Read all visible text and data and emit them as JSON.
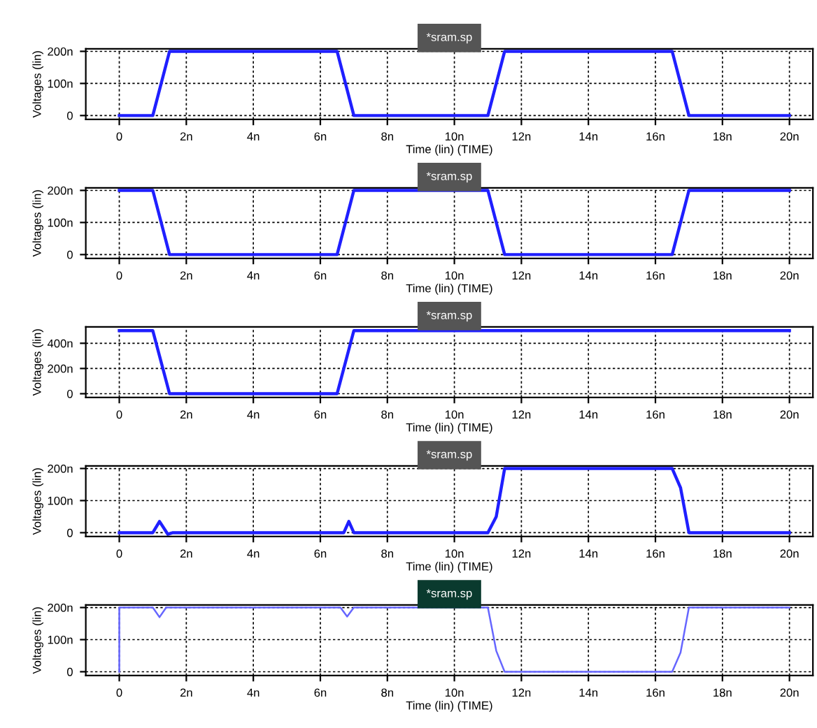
{
  "chart_data": [
    {
      "type": "line",
      "title": "*sram.sp",
      "xlabel": "Time (lin) (TIME)",
      "ylabel": "Voltages (lin)",
      "xlim": [
        -1,
        20.7
      ],
      "ylim": [
        -12,
        208
      ],
      "xticks": [
        0,
        {
          "value": 2,
          "label": "2n"
        },
        {
          "value": 4,
          "label": "4n"
        },
        {
          "value": 6,
          "label": "6n"
        },
        {
          "value": 8,
          "label": "8n"
        },
        {
          "value": 10,
          "label": "10n"
        },
        {
          "value": 12,
          "label": "12n"
        },
        {
          "value": 14,
          "label": "14n"
        },
        {
          "value": 16,
          "label": "16n"
        },
        {
          "value": 18,
          "label": "18n"
        },
        {
          "value": 20,
          "label": "20n"
        }
      ],
      "yticks": [
        0,
        {
          "value": 100,
          "label": "100n"
        },
        {
          "value": 200,
          "label": "200n"
        }
      ],
      "grid": true,
      "legend": false,
      "series": [
        {
          "color": "#1f1fff",
          "x": [
            0,
            1,
            1.5,
            6.5,
            7,
            11,
            11.5,
            16.5,
            17,
            20
          ],
          "values": [
            0,
            0,
            200,
            200,
            0,
            0,
            200,
            200,
            0,
            0
          ]
        }
      ]
    },
    {
      "type": "line",
      "title": "*sram.sp",
      "xlabel": "Time (lin) (TIME)",
      "ylabel": "Voltages (lin)",
      "xlim": [
        -1,
        20.7
      ],
      "ylim": [
        -12,
        208
      ],
      "xticks": [
        0,
        {
          "value": 2,
          "label": "2n"
        },
        {
          "value": 4,
          "label": "4n"
        },
        {
          "value": 6,
          "label": "6n"
        },
        {
          "value": 8,
          "label": "8n"
        },
        {
          "value": 10,
          "label": "10n"
        },
        {
          "value": 12,
          "label": "12n"
        },
        {
          "value": 14,
          "label": "14n"
        },
        {
          "value": 16,
          "label": "16n"
        },
        {
          "value": 18,
          "label": "18n"
        },
        {
          "value": 20,
          "label": "20n"
        }
      ],
      "yticks": [
        0,
        {
          "value": 100,
          "label": "100n"
        },
        {
          "value": 200,
          "label": "200n"
        }
      ],
      "grid": true,
      "legend": false,
      "series": [
        {
          "color": "#1f1fff",
          "x": [
            0,
            1,
            1.5,
            6.5,
            7,
            11,
            11.5,
            16.5,
            17,
            20
          ],
          "values": [
            200,
            200,
            0,
            0,
            200,
            200,
            0,
            0,
            200,
            200
          ]
        }
      ]
    },
    {
      "type": "line",
      "title": "*sram.sp",
      "xlabel": "Time (lin) (TIME)",
      "ylabel": "Voltages (lin)",
      "xlim": [
        -1,
        20.7
      ],
      "ylim": [
        -30,
        530
      ],
      "xticks": [
        0,
        {
          "value": 2,
          "label": "2n"
        },
        {
          "value": 4,
          "label": "4n"
        },
        {
          "value": 6,
          "label": "6n"
        },
        {
          "value": 8,
          "label": "8n"
        },
        {
          "value": 10,
          "label": "10n"
        },
        {
          "value": 12,
          "label": "12n"
        },
        {
          "value": 14,
          "label": "14n"
        },
        {
          "value": 16,
          "label": "16n"
        },
        {
          "value": 18,
          "label": "18n"
        },
        {
          "value": 20,
          "label": "20n"
        }
      ],
      "yticks": [
        0,
        {
          "value": 200,
          "label": "200n"
        },
        {
          "value": 400,
          "label": "400n"
        }
      ],
      "grid": true,
      "legend": false,
      "series": [
        {
          "color": "#1f1fff",
          "x": [
            0,
            1,
            1.5,
            6.5,
            7,
            20
          ],
          "values": [
            500,
            500,
            0,
            0,
            500,
            500
          ]
        }
      ]
    },
    {
      "type": "line",
      "title": "*sram.sp",
      "xlabel": "Time (lin) (TIME)",
      "ylabel": "Voltages (lin)",
      "xlim": [
        -1,
        20.7
      ],
      "ylim": [
        -12,
        208
      ],
      "xticks": [
        0,
        {
          "value": 2,
          "label": "2n"
        },
        {
          "value": 4,
          "label": "4n"
        },
        {
          "value": 6,
          "label": "6n"
        },
        {
          "value": 8,
          "label": "8n"
        },
        {
          "value": 10,
          "label": "10n"
        },
        {
          "value": 12,
          "label": "12n"
        },
        {
          "value": 14,
          "label": "14n"
        },
        {
          "value": 16,
          "label": "16n"
        },
        {
          "value": 18,
          "label": "18n"
        },
        {
          "value": 20,
          "label": "20n"
        }
      ],
      "yticks": [
        0,
        {
          "value": 100,
          "label": "100n"
        },
        {
          "value": 200,
          "label": "200n"
        }
      ],
      "grid": true,
      "legend": false,
      "series": [
        {
          "color": "#1f1fff",
          "x": [
            0,
            1,
            1.2,
            1.45,
            1.6,
            6.7,
            6.85,
            7,
            11,
            11.25,
            11.5,
            16.5,
            16.75,
            17,
            20
          ],
          "values": [
            0,
            0,
            35,
            -5,
            0,
            0,
            35,
            0,
            0,
            50,
            200,
            200,
            140,
            0,
            0
          ]
        }
      ]
    },
    {
      "type": "line",
      "title": "*sram.sp",
      "xlabel": "Time (lin) (TIME)",
      "ylabel": "Voltages (lin)",
      "xlim": [
        -1,
        20.7
      ],
      "ylim": [
        -12,
        208
      ],
      "xticks": [
        0,
        {
          "value": 2,
          "label": "2n"
        },
        {
          "value": 4,
          "label": "4n"
        },
        {
          "value": 6,
          "label": "6n"
        },
        {
          "value": 8,
          "label": "8n"
        },
        {
          "value": 10,
          "label": "10n"
        },
        {
          "value": 12,
          "label": "12n"
        },
        {
          "value": 14,
          "label": "14n"
        },
        {
          "value": 16,
          "label": "16n"
        },
        {
          "value": 18,
          "label": "18n"
        },
        {
          "value": 20,
          "label": "20n"
        }
      ],
      "yticks": [
        0,
        {
          "value": 100,
          "label": "100n"
        },
        {
          "value": 200,
          "label": "200n"
        }
      ],
      "grid": true,
      "legend": false,
      "series": [
        {
          "color": "#6666ff",
          "x": [
            0,
            0,
            0.1,
            1,
            1.2,
            1.4,
            6.6,
            6.8,
            7,
            11,
            11.25,
            11.5,
            16.5,
            16.75,
            17,
            20
          ],
          "values": [
            0,
            200,
            200,
            200,
            170,
            200,
            200,
            172,
            200,
            200,
            65,
            0,
            0,
            60,
            200,
            200
          ]
        }
      ]
    }
  ]
}
